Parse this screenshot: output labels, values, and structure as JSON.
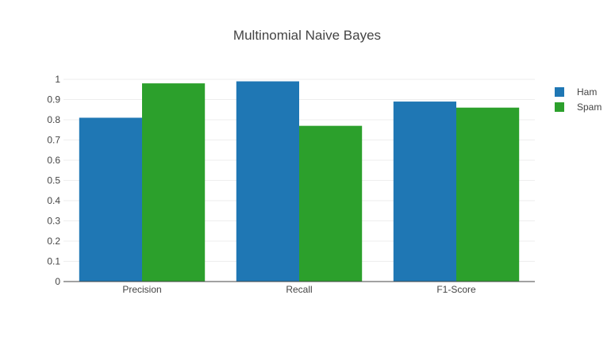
{
  "chart_data": {
    "type": "bar",
    "title": "Multinomial Naive Bayes",
    "xlabel": "",
    "ylabel": "",
    "categories": [
      "Precision",
      "Recall",
      "F1-Score"
    ],
    "series": [
      {
        "name": "Ham",
        "values": [
          0.81,
          0.99,
          0.89
        ],
        "color": "#1f77b4"
      },
      {
        "name": "Spam",
        "values": [
          0.98,
          0.77,
          0.86
        ],
        "color": "#2ca02c"
      }
    ],
    "ylim": [
      0,
      1
    ],
    "yticks": [
      "0",
      "0.1",
      "0.2",
      "0.3",
      "0.4",
      "0.5",
      "0.6",
      "0.7",
      "0.8",
      "0.9",
      "1"
    ],
    "grid": true,
    "legend_position": "top-right"
  }
}
